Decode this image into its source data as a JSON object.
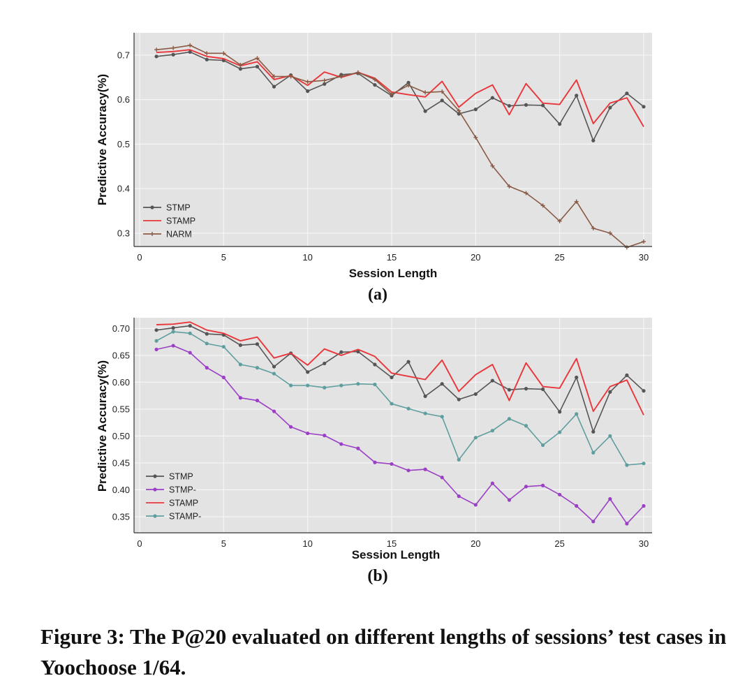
{
  "chart_data": [
    {
      "type": "line",
      "panel_label": "(a)",
      "xlabel": "Session Length",
      "ylabel": "Predictive Accuracy(%)",
      "xlim": [
        0,
        30.5
      ],
      "ylim": [
        0.27,
        0.75
      ],
      "xticks": [
        0,
        5,
        10,
        15,
        20,
        25,
        30
      ],
      "yticks": [
        0.3,
        0.4,
        0.5,
        0.6,
        0.7
      ],
      "ytick_labels": [
        "0.3",
        "0.4",
        "0.5",
        "0.6",
        "0.7"
      ],
      "grid": true,
      "legend_position": "lower-left",
      "x": [
        1,
        2,
        3,
        4,
        5,
        6,
        7,
        8,
        9,
        10,
        11,
        12,
        13,
        14,
        15,
        16,
        17,
        18,
        19,
        20,
        21,
        22,
        23,
        24,
        25,
        26,
        27,
        28,
        29,
        30
      ],
      "series": [
        {
          "name": "STMP",
          "color": "#555555",
          "marker": "circle",
          "values": [
            0.697,
            0.701,
            0.707,
            0.69,
            0.688,
            0.669,
            0.674,
            0.629,
            0.655,
            0.619,
            0.635,
            0.656,
            0.659,
            0.633,
            0.609,
            0.638,
            0.574,
            0.598,
            0.568,
            0.578,
            0.604,
            0.586,
            0.588,
            0.587,
            0.545,
            0.609,
            0.508,
            0.582,
            0.614,
            0.584
          ]
        },
        {
          "name": "STAMP",
          "color": "#e8363a",
          "marker": "none",
          "values": [
            0.706,
            0.708,
            0.712,
            0.697,
            0.692,
            0.676,
            0.685,
            0.645,
            0.654,
            0.632,
            0.662,
            0.65,
            0.661,
            0.648,
            0.617,
            0.611,
            0.606,
            0.641,
            0.583,
            0.614,
            0.633,
            0.566,
            0.636,
            0.592,
            0.589,
            0.644,
            0.546,
            0.592,
            0.604,
            0.539
          ]
        },
        {
          "name": "NARM",
          "color": "#8a5a45",
          "marker": "plus",
          "values": [
            0.712,
            0.716,
            0.722,
            0.704,
            0.704,
            0.678,
            0.693,
            0.652,
            0.652,
            0.64,
            0.643,
            0.652,
            0.661,
            0.645,
            0.612,
            0.632,
            0.616,
            0.618,
            0.575,
            0.515,
            0.451,
            0.405,
            0.39,
            0.362,
            0.327,
            0.371,
            0.311,
            0.3,
            0.268,
            0.281
          ]
        }
      ]
    },
    {
      "type": "line",
      "panel_label": "(b)",
      "xlabel": "Session Length",
      "ylabel": "Predictive Accuracy(%)",
      "xlim": [
        0,
        30.5
      ],
      "ylim": [
        0.32,
        0.72
      ],
      "xticks": [
        0,
        5,
        10,
        15,
        20,
        25,
        30
      ],
      "yticks": [
        0.35,
        0.4,
        0.45,
        0.5,
        0.55,
        0.6,
        0.65,
        0.7
      ],
      "ytick_labels": [
        "0.35",
        "0.40",
        "0.45",
        "0.50",
        "0.55",
        "0.60",
        "0.65",
        "0.70"
      ],
      "grid": true,
      "legend_position": "lower-left",
      "x": [
        1,
        2,
        3,
        4,
        5,
        6,
        7,
        8,
        9,
        10,
        11,
        12,
        13,
        14,
        15,
        16,
        17,
        18,
        19,
        20,
        21,
        22,
        23,
        24,
        25,
        26,
        27,
        28,
        29,
        30
      ],
      "series": [
        {
          "name": "STMP",
          "color": "#555555",
          "marker": "circle",
          "values": [
            0.697,
            0.701,
            0.705,
            0.69,
            0.688,
            0.669,
            0.671,
            0.629,
            0.654,
            0.619,
            0.635,
            0.656,
            0.657,
            0.633,
            0.609,
            0.638,
            0.574,
            0.597,
            0.568,
            0.578,
            0.603,
            0.586,
            0.588,
            0.587,
            0.545,
            0.609,
            0.508,
            0.582,
            0.613,
            0.584
          ]
        },
        {
          "name": "STMP-",
          "color": "#9b3fc6",
          "marker": "circle",
          "values": [
            0.661,
            0.668,
            0.655,
            0.627,
            0.609,
            0.571,
            0.566,
            0.546,
            0.517,
            0.505,
            0.501,
            0.485,
            0.477,
            0.451,
            0.448,
            0.436,
            0.438,
            0.423,
            0.388,
            0.372,
            0.412,
            0.381,
            0.406,
            0.408,
            0.391,
            0.37,
            0.341,
            0.383,
            0.337,
            0.37
          ]
        },
        {
          "name": "STAMP",
          "color": "#e8363a",
          "marker": "none",
          "values": [
            0.707,
            0.708,
            0.712,
            0.697,
            0.691,
            0.677,
            0.684,
            0.645,
            0.654,
            0.632,
            0.662,
            0.65,
            0.661,
            0.648,
            0.617,
            0.611,
            0.605,
            0.641,
            0.583,
            0.614,
            0.633,
            0.566,
            0.636,
            0.592,
            0.589,
            0.644,
            0.546,
            0.592,
            0.604,
            0.539
          ]
        },
        {
          "name": "STAMP-",
          "color": "#5f9e9e",
          "marker": "circle",
          "values": [
            0.677,
            0.694,
            0.691,
            0.672,
            0.666,
            0.633,
            0.627,
            0.616,
            0.594,
            0.594,
            0.59,
            0.594,
            0.597,
            0.596,
            0.56,
            0.551,
            0.542,
            0.536,
            0.456,
            0.497,
            0.51,
            0.532,
            0.519,
            0.483,
            0.507,
            0.541,
            0.469,
            0.5,
            0.446,
            0.449
          ]
        }
      ]
    }
  ],
  "caption": "Figure 3: The P@20 evaluated on different lengths of sessions’ test cases in Yoochoose 1/64."
}
